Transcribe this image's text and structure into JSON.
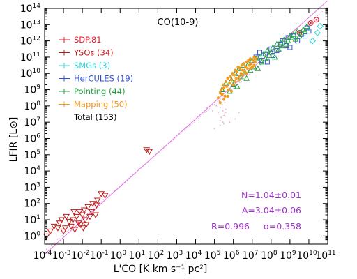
{
  "chart_data": {
    "type": "scatter",
    "title": "CO(10-9)",
    "xlabel": "L'CO [K km s⁻¹ pc²]",
    "ylabel": "LFIR [L⊙]",
    "x_log": true,
    "y_log": true,
    "xlim_exponent": [
      -4,
      11
    ],
    "ylim_exponent": [
      -0.5,
      14
    ],
    "x_tick_exponents": [
      "-4",
      "-3",
      "-2",
      "-1",
      "0",
      "1",
      "2",
      "3",
      "4",
      "5",
      "6",
      "7",
      "8",
      "9",
      "10",
      "11"
    ],
    "y_tick_exponents": [
      "0",
      "1",
      "2",
      "3",
      "4",
      "5",
      "6",
      "7",
      "8",
      "9",
      "10",
      "11",
      "12",
      "13",
      "14"
    ],
    "tick_base": "10",
    "grid": false,
    "legend": {
      "position": "top-left",
      "entries": [
        {
          "label": "SDP.81",
          "color": "#e8192c",
          "marker": "circle"
        },
        {
          "label": "YSOs (34)",
          "color": "#c01818",
          "marker": "triangle-down"
        },
        {
          "label": "SMGs (3)",
          "color": "#2fd3d8",
          "marker": "diamond"
        },
        {
          "label": "HerCULES (19)",
          "color": "#3050d8",
          "marker": "square"
        },
        {
          "label": "Pointing (44)",
          "color": "#20a040",
          "marker": "triangle-up"
        },
        {
          "label": "Mapping (50)",
          "color": "#f39a20",
          "marker": "dot"
        },
        {
          "label": "Total (153)",
          "color": "#000000",
          "marker": "none"
        }
      ]
    },
    "fit": {
      "N": "N=1.04±0.01",
      "A": "A=3.04±0.06",
      "R": "R=0.996",
      "sigma": "σ=0.358",
      "slope": 1.04,
      "intercept": 3.04,
      "color": "#e070e0"
    },
    "series": [
      {
        "name": "SDP.81",
        "color": "#e8192c",
        "marker": "circle",
        "x": [
          9.5,
          10.1,
          10.4
        ],
        "y": [
          12.5,
          13.1,
          13.3
        ]
      },
      {
        "name": "YSOs (34)",
        "color": "#c01818",
        "marker": "triangle-down",
        "x": [
          -3.9,
          -3.7,
          -3.5,
          -3.3,
          -3.2,
          -3.1,
          -3.0,
          -2.9,
          -2.85,
          -2.7,
          -2.6,
          -2.5,
          -2.45,
          -2.4,
          -2.3,
          -2.2,
          -2.15,
          -2.1,
          -2.0,
          -1.95,
          -1.9,
          -1.85,
          -1.8,
          -1.7,
          -1.6,
          -1.5,
          -1.45,
          -1.3,
          -1.25,
          -1.2,
          -1.0,
          -0.8,
          1.4,
          1.55
        ],
        "y": [
          0.0,
          0.3,
          0.6,
          0.5,
          0.8,
          1.0,
          0.3,
          0.5,
          1.2,
          0.9,
          0.6,
          1.0,
          1.5,
          0.4,
          1.2,
          0.8,
          1.5,
          0.7,
          1.3,
          0.5,
          1.6,
          1.0,
          0.7,
          1.8,
          1.2,
          1.5,
          2.0,
          1.3,
          1.9,
          2.2,
          2.6,
          2.5,
          5.3,
          5.2
        ]
      },
      {
        "name": "SMGs (3)",
        "color": "#2fd3d8",
        "marker": "diamond",
        "x": [
          10.2,
          10.45,
          10.6
        ],
        "y": [
          12.0,
          12.5,
          12.9
        ]
      },
      {
        "name": "HerCULES (19)",
        "color": "#3050d8",
        "marker": "square",
        "x": [
          7.2,
          7.4,
          7.5,
          7.7,
          7.8,
          8.0,
          8.1,
          8.3,
          8.5,
          8.6,
          8.8,
          8.9,
          9.0,
          9.2,
          9.4,
          9.6,
          9.8,
          9.9,
          10.0
        ],
        "y": [
          11.0,
          11.3,
          10.8,
          11.2,
          10.7,
          11.5,
          11.1,
          11.4,
          11.8,
          12.0,
          11.7,
          12.2,
          11.6,
          12.3,
          12.0,
          12.4,
          12.3,
          12.8,
          12.6
        ]
      },
      {
        "name": "Pointing (44)",
        "color": "#20a040",
        "marker": "triangle-up",
        "x": [
          5.4,
          5.6,
          5.8,
          5.9,
          6.0,
          6.1,
          6.2,
          6.3,
          6.4,
          6.5,
          6.6,
          6.7,
          6.8,
          6.9,
          7.0,
          7.1,
          7.2,
          7.3,
          7.4,
          7.5,
          7.6,
          7.7,
          7.8,
          7.9,
          8.0,
          8.1,
          8.2,
          8.3,
          8.4,
          8.5,
          8.6,
          8.7,
          8.8,
          8.9,
          9.0,
          9.1,
          9.2,
          9.3,
          9.4,
          9.5,
          9.6,
          9.7,
          9.8,
          9.9
        ],
        "y": [
          9.0,
          9.4,
          8.9,
          9.6,
          9.3,
          10.0,
          9.2,
          10.3,
          9.8,
          10.5,
          10.1,
          9.7,
          10.6,
          10.2,
          10.8,
          10.4,
          10.9,
          10.3,
          11.0,
          10.7,
          11.2,
          10.9,
          11.4,
          11.1,
          11.3,
          11.6,
          11.0,
          11.8,
          11.5,
          11.9,
          11.7,
          12.1,
          11.8,
          12.0,
          12.3,
          12.2,
          12.4,
          12.1,
          12.6,
          12.3,
          12.5,
          12.7,
          12.6,
          12.9
        ]
      },
      {
        "name": "Mapping (50)",
        "color": "#f39a20",
        "marker": "dot",
        "x": [
          5.2,
          5.3,
          5.35,
          5.4,
          5.45,
          5.5,
          5.55,
          5.6,
          5.65,
          5.7,
          5.75,
          5.8,
          5.85,
          5.9,
          5.95,
          6.0,
          6.05,
          6.1,
          6.15,
          6.2,
          6.25,
          6.3,
          6.35,
          6.4,
          6.45,
          6.5,
          6.55,
          6.6,
          6.65,
          6.7,
          6.75,
          6.8,
          6.85,
          6.9,
          6.95,
          7.0,
          7.05,
          7.1,
          7.15,
          7.2,
          5.3,
          5.5,
          5.7,
          5.9,
          6.1,
          6.3,
          6.5,
          6.7,
          6.9,
          7.1
        ],
        "y": [
          8.5,
          8.8,
          9.0,
          8.7,
          9.3,
          9.1,
          8.6,
          9.5,
          9.2,
          9.7,
          9.0,
          9.4,
          9.8,
          9.6,
          10.0,
          9.3,
          9.9,
          10.2,
          9.7,
          10.1,
          10.4,
          9.8,
          10.3,
          10.0,
          10.5,
          10.2,
          10.6,
          10.1,
          10.4,
          10.7,
          10.3,
          10.8,
          10.5,
          10.9,
          10.6,
          10.4,
          10.8,
          11.0,
          10.7,
          10.9,
          8.2,
          8.4,
          8.6,
          8.9,
          9.5,
          9.6,
          9.9,
          10.0,
          10.3,
          10.5
        ]
      }
    ],
    "faint_points": {
      "color": "#e4b0c8",
      "x": [
        5.1,
        5.2,
        5.25,
        5.3,
        5.35,
        5.4,
        5.45,
        5.5,
        5.55,
        5.6,
        5.3,
        5.45,
        5.5,
        5.25,
        5.4,
        5.6,
        5.3,
        5.5,
        4.6,
        4.9,
        6.3,
        6.1,
        5.8,
        5.0
      ],
      "y": [
        8.0,
        7.6,
        8.3,
        7.9,
        7.3,
        8.1,
        7.7,
        7.5,
        8.2,
        7.8,
        7.1,
        7.0,
        7.4,
        8.5,
        7.2,
        7.6,
        6.8,
        6.9,
        7.9,
        7.7,
        7.6,
        7.2,
        7.0,
        6.6
      ]
    }
  }
}
